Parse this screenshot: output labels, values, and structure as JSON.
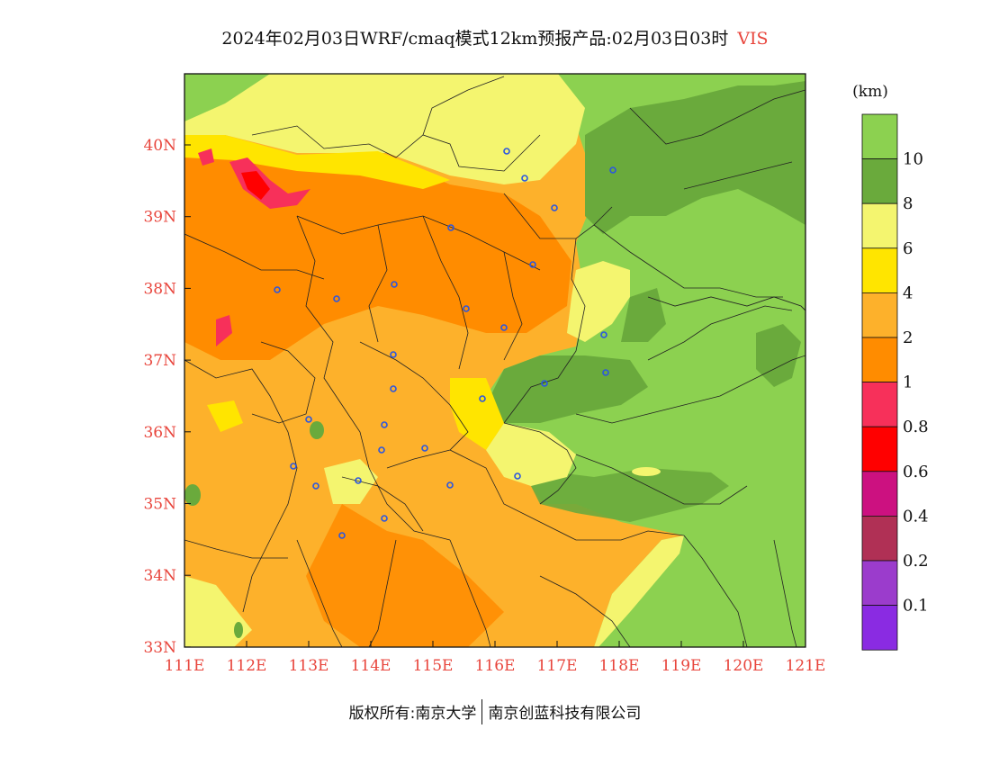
{
  "title": {
    "main": "2024年02月03日WRF/cmaq模式12km预报产品:02月03日03时",
    "variable": "VIS"
  },
  "map": {
    "lat_ticks": [
      "40N",
      "39N",
      "38N",
      "37N",
      "36N",
      "35N",
      "34N",
      "33N"
    ],
    "lon_ticks": [
      "111E",
      "112E",
      "113E",
      "114E",
      "115E",
      "116E",
      "117E",
      "118E",
      "119E",
      "120E",
      "121E"
    ],
    "tick_color": "#e8453c"
  },
  "legend": {
    "unit": "(km)",
    "levels": [
      {
        "label": "10",
        "color": "#8cd150"
      },
      {
        "label": "8",
        "color": "#6aaa3c"
      },
      {
        "label": "6",
        "color": "#f4f56f"
      },
      {
        "label": "4",
        "color": "#ffe500"
      },
      {
        "label": "2",
        "color": "#fdb12b"
      },
      {
        "label": "1",
        "color": "#ff8c00"
      },
      {
        "label": "0.8",
        "color": "#f7305a"
      },
      {
        "label": "0.6",
        "color": "#ff0000"
      },
      {
        "label": "0.4",
        "color": "#cc1180"
      },
      {
        "label": "0.2",
        "color": "#b03055"
      },
      {
        "label": "0.1",
        "color": "#9b3ccc"
      },
      {
        "label": "",
        "color": "#8a2be2"
      }
    ]
  },
  "footer": {
    "left": "版权所有:南京大学",
    "right": "南京创蓝科技有限公司"
  }
}
